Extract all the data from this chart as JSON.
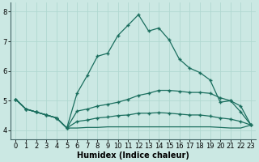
{
  "xlabel": "Humidex (Indice chaleur)",
  "background_color": "#cbe8e3",
  "grid_color": "#b0d8d0",
  "line_color": "#1a6e5e",
  "xlim": [
    -0.5,
    23.5
  ],
  "ylim": [
    3.7,
    8.3
  ],
  "yticks": [
    4,
    5,
    6,
    7,
    8
  ],
  "xticks": [
    0,
    1,
    2,
    3,
    4,
    5,
    6,
    7,
    8,
    9,
    10,
    11,
    12,
    13,
    14,
    15,
    16,
    17,
    18,
    19,
    20,
    21,
    22,
    23
  ],
  "s1_x": [
    0,
    1,
    2,
    3,
    4,
    5,
    6,
    7,
    8,
    9,
    10,
    11,
    12,
    13,
    14,
    15,
    16,
    17,
    18,
    19,
    20,
    21,
    22,
    23
  ],
  "s1_y": [
    5.05,
    4.72,
    4.62,
    4.52,
    4.42,
    4.08,
    5.25,
    5.85,
    6.5,
    6.6,
    7.2,
    7.55,
    7.9,
    7.35,
    7.45,
    7.05,
    6.4,
    6.1,
    5.95,
    5.7,
    4.95,
    5.0,
    4.62,
    4.18
  ],
  "s2_x": [
    0,
    1,
    2,
    3,
    4,
    5,
    6,
    7,
    8,
    9,
    10,
    11,
    12,
    13,
    14,
    15,
    16,
    17,
    18,
    19,
    20,
    21,
    22,
    23
  ],
  "s2_y": [
    5.05,
    4.72,
    4.62,
    4.52,
    4.42,
    4.08,
    4.65,
    4.72,
    4.82,
    4.88,
    4.95,
    5.05,
    5.18,
    5.25,
    5.35,
    5.35,
    5.32,
    5.28,
    5.28,
    5.25,
    5.1,
    5.0,
    4.82,
    4.18
  ],
  "s3_x": [
    0,
    1,
    2,
    3,
    4,
    5,
    6,
    7,
    8,
    9,
    10,
    11,
    12,
    13,
    14,
    15,
    16,
    17,
    18,
    19,
    20,
    21,
    22,
    23
  ],
  "s3_y": [
    5.05,
    4.72,
    4.62,
    4.52,
    4.42,
    4.08,
    4.3,
    4.35,
    4.42,
    4.45,
    4.5,
    4.52,
    4.58,
    4.58,
    4.6,
    4.58,
    4.55,
    4.52,
    4.52,
    4.48,
    4.42,
    4.38,
    4.3,
    4.18
  ],
  "s4_x": [
    0,
    1,
    2,
    3,
    4,
    5,
    6,
    7,
    8,
    9,
    10,
    11,
    12,
    13,
    14,
    15,
    16,
    17,
    18,
    19,
    20,
    21,
    22,
    23
  ],
  "s4_y": [
    5.05,
    4.72,
    4.62,
    4.52,
    4.42,
    4.08,
    4.08,
    4.1,
    4.1,
    4.12,
    4.12,
    4.12,
    4.12,
    4.12,
    4.12,
    4.12,
    4.12,
    4.12,
    4.12,
    4.12,
    4.1,
    4.08,
    4.08,
    4.18
  ],
  "marker": "+",
  "markersize": 3.5,
  "linewidth": 0.9,
  "xlabel_fontsize": 7,
  "tick_fontsize": 6,
  "spine_color": "#446666"
}
